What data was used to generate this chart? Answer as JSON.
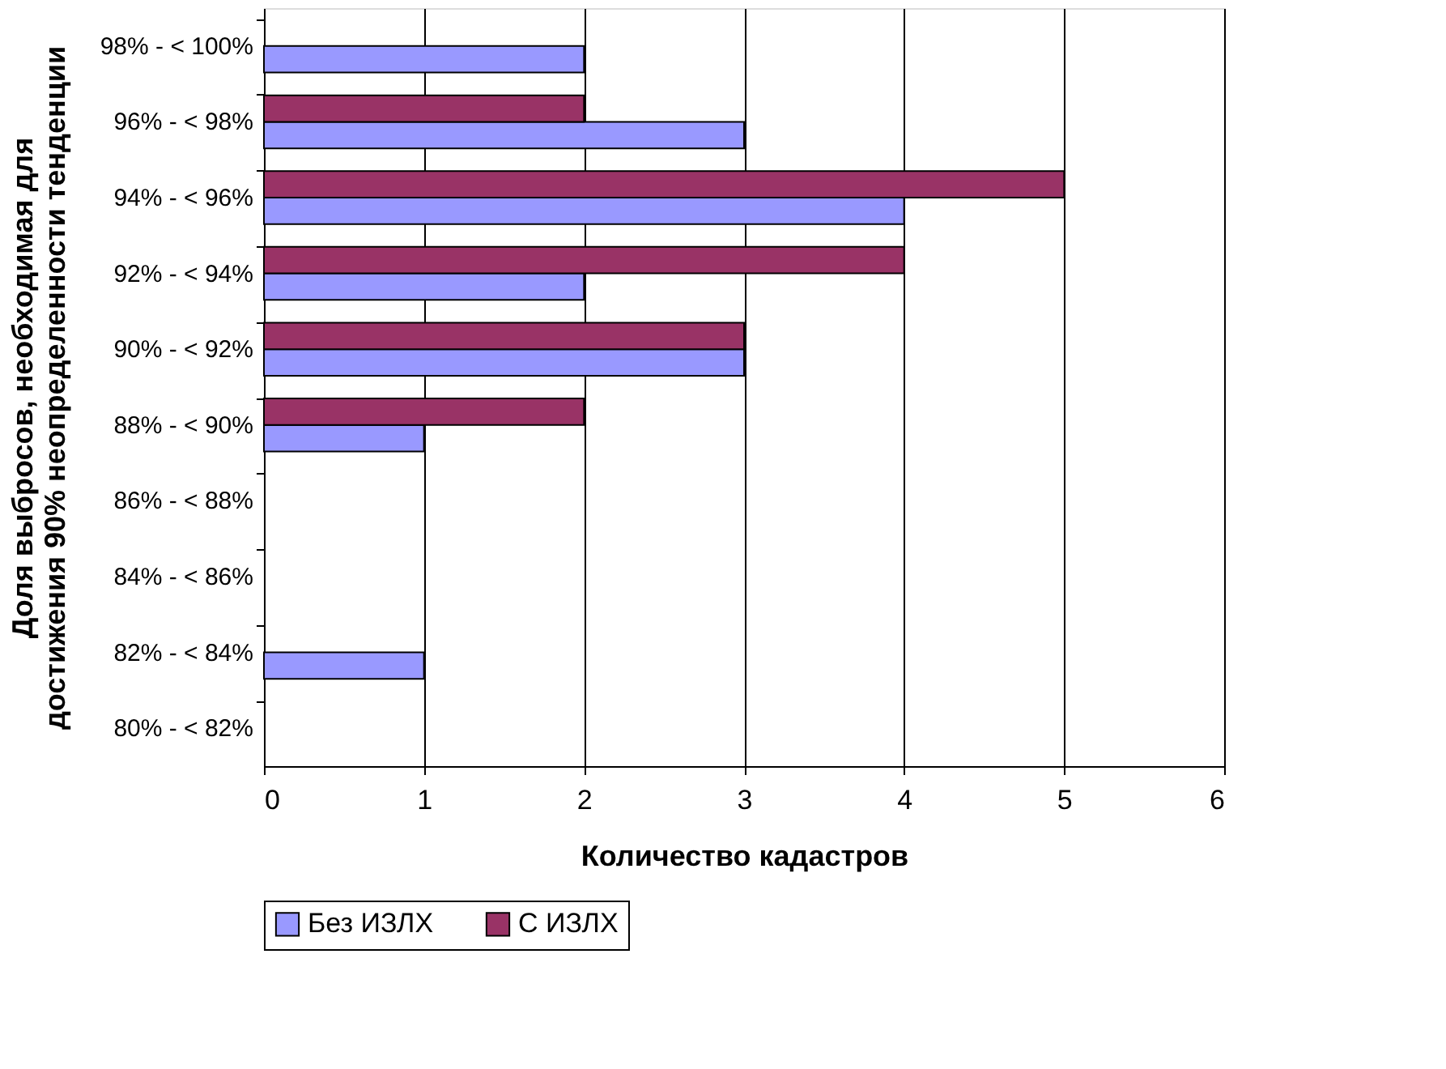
{
  "chart_data": {
    "type": "bar",
    "orientation": "horizontal",
    "xlabel": "Количество кадастров",
    "ylabel": "Доля выбросов, необходимая для достижения 90% неопределенности тенденции",
    "categories": [
      "98% - < 100%",
      "96% - < 98%",
      "94% - < 96%",
      "92% - < 94%",
      "90% - < 92%",
      "88% - < 90%",
      "86% - < 88%",
      "84% - < 86%",
      "82% - < 84%",
      "80% - < 82%"
    ],
    "series": [
      {
        "name": "Без ИЗЛХ",
        "color": "#9999ff",
        "values": [
          2,
          3,
          4,
          2,
          3,
          1,
          null,
          null,
          1,
          null
        ]
      },
      {
        "name": "С ИЗЛХ",
        "color": "#993366",
        "values": [
          null,
          2,
          5,
          4,
          3,
          2,
          null,
          null,
          null,
          null
        ]
      }
    ],
    "xlim": [
      0,
      6
    ],
    "xticks": [
      0,
      1,
      2,
      3,
      4,
      5,
      6
    ],
    "grid": "x",
    "legend": "bottom"
  }
}
